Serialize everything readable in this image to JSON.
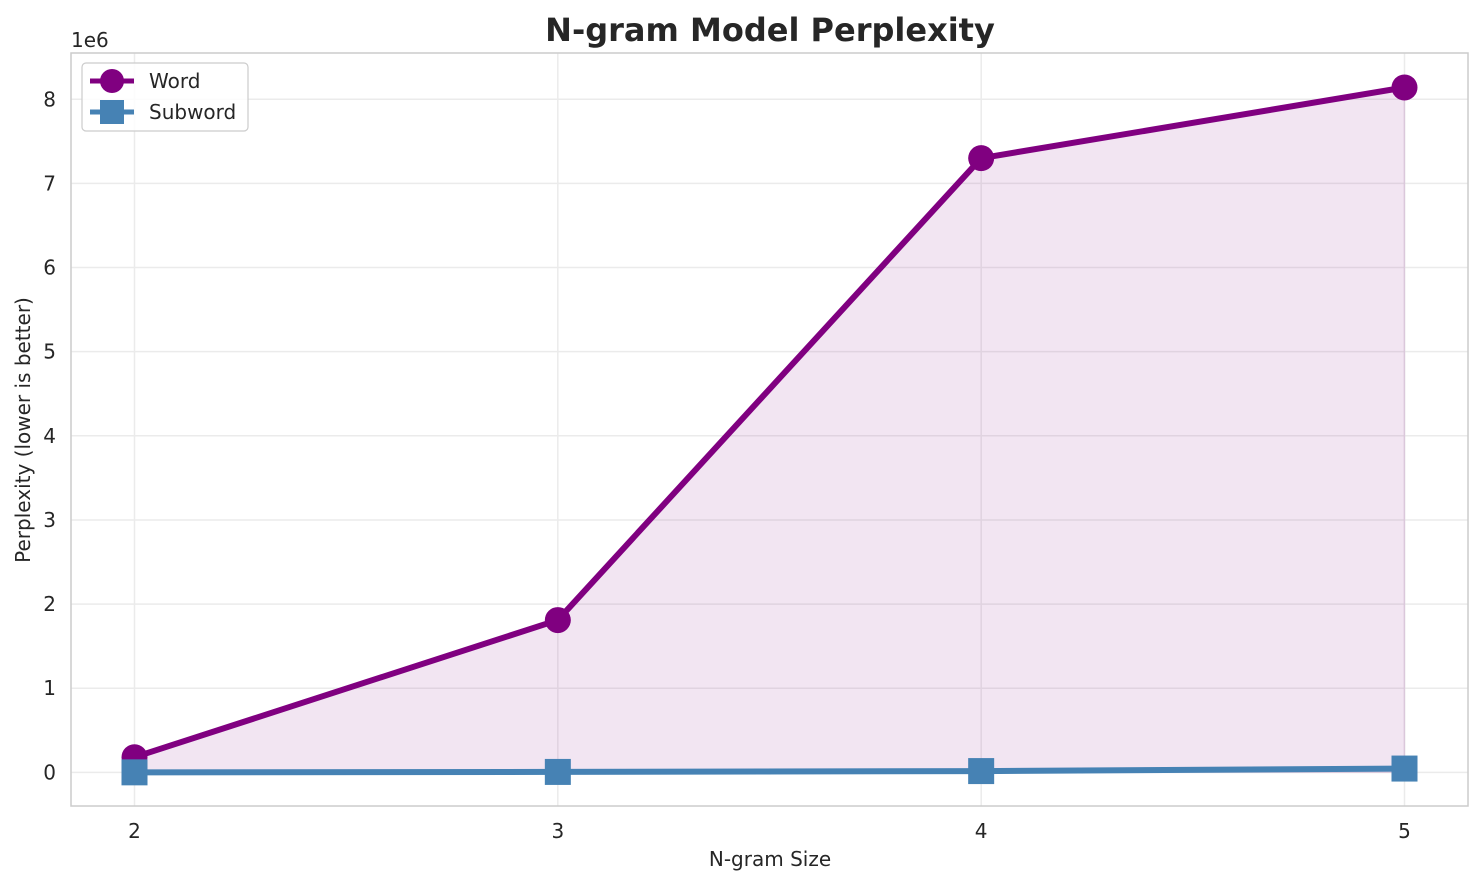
{
  "chart_data": {
    "type": "line",
    "title": "N-gram Model Perplexity",
    "xlabel": "N-gram Size",
    "ylabel": "Perplexity (lower is better)",
    "y_offset_label": "1e6",
    "x": [
      2,
      3,
      4,
      5
    ],
    "xlim": [
      1.85,
      5.15
    ],
    "ylim": [
      -400000,
      8550000
    ],
    "x_ticks": [
      2,
      3,
      4,
      5
    ],
    "x_tick_labels": [
      "2",
      "3",
      "4",
      "5"
    ],
    "y_ticks": [
      0,
      1000000,
      2000000,
      3000000,
      4000000,
      5000000,
      6000000,
      7000000,
      8000000
    ],
    "y_tick_labels": [
      "0",
      "1",
      "2",
      "3",
      "4",
      "5",
      "6",
      "7",
      "8"
    ],
    "grid": true,
    "legend_position": "top-left",
    "series": [
      {
        "name": "Word",
        "values": [
          180000,
          1810000,
          7300000,
          8140000
        ],
        "color": "#800080",
        "marker": "circle",
        "fill": true
      },
      {
        "name": "Subword",
        "values": [
          0,
          5000,
          15000,
          45000
        ],
        "color": "#4682b4",
        "marker": "square",
        "fill": false
      }
    ]
  }
}
